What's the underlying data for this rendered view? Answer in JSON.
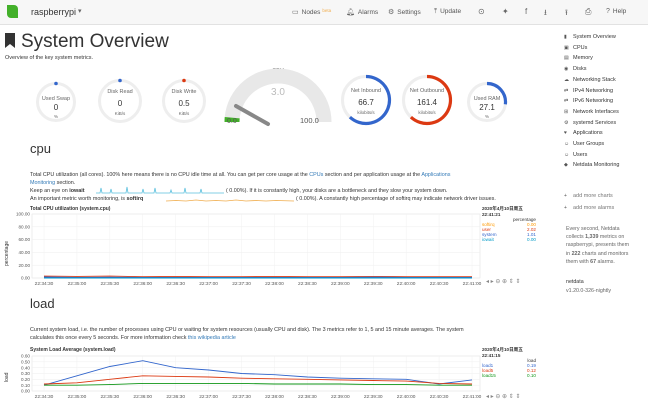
{
  "nav": {
    "brand": "raspberrypi",
    "items": [
      {
        "label": "Nodes",
        "badge": "beta",
        "icon": "nodes-icon"
      },
      {
        "label": "Alarms",
        "icon": "bell-icon"
      },
      {
        "label": "Settings",
        "icon": "gear-icon"
      },
      {
        "label": "Update",
        "icon": "update-icon"
      },
      {
        "label": "Help",
        "icon": "help-icon"
      }
    ],
    "icons": [
      "github-icon",
      "twitter-icon",
      "facebook-icon",
      "download-icon",
      "upload-icon",
      "print-icon"
    ]
  },
  "header": {
    "title": "System Overview",
    "subtitle": "Overview of the key system metrics."
  },
  "gauges": [
    {
      "title": "Used Swap",
      "value": "0",
      "unit": "%",
      "color": "#3366cc"
    },
    {
      "title": "Disk Read",
      "value": "0",
      "unit": "KiB/s",
      "color": "#3366cc"
    },
    {
      "title": "Disk Write",
      "value": "0.5",
      "unit": "KiB/s",
      "color": "#dc3912"
    },
    {
      "title": "Net Inbound",
      "value": "66.7",
      "unit": "kilobits/s",
      "color": "#3366cc"
    },
    {
      "title": "Net Outbound",
      "value": "161.4",
      "unit": "kilobits/s",
      "color": "#dc3912"
    },
    {
      "title": "Used RAM",
      "value": "27.1",
      "unit": "%",
      "color": "#3366cc"
    }
  ],
  "cpu_gauge": {
    "title": "CPU",
    "value": "3.0",
    "min": "0.0",
    "max": "100.0",
    "level_pct": 3.0
  },
  "cpu_section": {
    "title": "cpu",
    "desc_1": "Total CPU utilization (all cores). 100% here means there is no CPU idle time at all. You can get per core usage at the ",
    "desc_link_1": "CPUs",
    "desc_2": " section and per application usage at the ",
    "desc_link_2": "Applications",
    "desc_link_3": "Monitoring",
    "desc_3": " section.",
    "iowait_prefix": "Keep an eye on ",
    "iowait_key": "iowait",
    "iowait_suffix": "(      0.00%). If it is constantly high, your disks are a bottleneck and they slow your system down.",
    "softirq_prefix": "An important metric worth monitoring, is ",
    "softirq_key": "softirq",
    "softirq_suffix": "(      0.00%). A constantly high percentage of softirq may indicate network driver issues.",
    "chart_title": "Total CPU utilization (system.cpu)",
    "ylabel": "percentage",
    "timestamp_date": "2020年4月10日周五",
    "timestamp_time": "22:41:21",
    "legend_header": "percentage",
    "legend": [
      {
        "name": "softirq",
        "value": "0.00",
        "color": "#ff9900"
      },
      {
        "name": "user",
        "value": "2.02",
        "color": "#dc3912"
      },
      {
        "name": "system",
        "value": "1.01",
        "color": "#3366cc"
      },
      {
        "name": "iowait",
        "value": "0.00",
        "color": "#0099c6"
      }
    ],
    "yticks": [
      "100.00",
      "80.00",
      "60.00",
      "40.00",
      "20.00",
      "0.00"
    ],
    "xticks": [
      "22:34:30",
      "22:35:00",
      "22:35:30",
      "22:36:00",
      "22:36:30",
      "22:37:00",
      "22:37:30",
      "22:38:00",
      "22:38:30",
      "22:39:00",
      "22:39:30",
      "22:40:00",
      "22:40:30",
      "22:41:00"
    ]
  },
  "load_section": {
    "title": "load",
    "desc_1": "Current system load, i.e. the number of processes using CPU or waiting for system resources (usually CPU and disk). The 3 metrics refer to 1, 5 and 15 minute averages. The system",
    "desc_2": "calculates this once every 5 seconds. For more information check ",
    "desc_link": "this wikipedia article",
    "chart_title": "System Load Average (system.load)",
    "ylabel": "load",
    "timestamp_date": "2020年4月10日周五",
    "timestamp_time": "22:41:15",
    "legend_header": "load",
    "legend": [
      {
        "name": "load1",
        "value": "0.19",
        "color": "#3366cc"
      },
      {
        "name": "load5",
        "value": "0.12",
        "color": "#dc3912"
      },
      {
        "name": "load15",
        "value": "0.10",
        "color": "#109618"
      }
    ],
    "yticks": [
      "0.60",
      "0.50",
      "0.40",
      "0.30",
      "0.20",
      "0.10",
      "0.00"
    ],
    "xticks": [
      "22:34:30",
      "22:35:00",
      "22:35:30",
      "22:36:00",
      "22:36:30",
      "22:37:00",
      "22:37:30",
      "22:38:00",
      "22:38:30",
      "22:39:00",
      "22:39:30",
      "22:40:00",
      "22:40:30",
      "22:41:00"
    ]
  },
  "sidebar": {
    "items": [
      {
        "label": "System Overview",
        "icon": "bookmark-icon"
      },
      {
        "label": "CPUs",
        "icon": "cpu-icon"
      },
      {
        "label": "Memory",
        "icon": "memory-icon"
      },
      {
        "label": "Disks",
        "icon": "disk-icon"
      },
      {
        "label": "Networking Stack",
        "icon": "cloud-icon"
      },
      {
        "label": "IPv4 Networking",
        "icon": "network-icon"
      },
      {
        "label": "IPv6 Networking",
        "icon": "network-icon"
      },
      {
        "label": "Network Interfaces",
        "icon": "sitemap-icon"
      },
      {
        "label": "systemd Services",
        "icon": "cogs-icon"
      },
      {
        "label": "Applications",
        "icon": "heartbeat-icon"
      },
      {
        "label": "User Groups",
        "icon": "users-icon"
      },
      {
        "label": "Users",
        "icon": "user-icon"
      },
      {
        "label": "Netdata Monitoring",
        "icon": "netdata-icon"
      }
    ],
    "add_charts": "add more charts",
    "add_alarms": "add more alarms",
    "info_1": "Every second, Netdata",
    "info_2a": "collects ",
    "info_2b": "1,339",
    "info_2c": " metrics on",
    "info_3": "raspberrypi, presents them",
    "info_4a": "in ",
    "info_4b": "222",
    "info_4c": " charts and monitors",
    "info_5a": "them with ",
    "info_5b": "67",
    "info_5c": " alarms.",
    "footer_name": "netdata",
    "footer_version": "v1.20.0-326-nightly"
  },
  "chart_data": [
    {
      "type": "line",
      "title": "Total CPU utilization (system.cpu)",
      "ylabel": "percentage",
      "ylim": [
        0,
        100
      ],
      "x": [
        "22:34:30",
        "22:35:00",
        "22:35:30",
        "22:36:00",
        "22:36:30",
        "22:37:00",
        "22:37:30",
        "22:38:00",
        "22:38:30",
        "22:39:00",
        "22:39:30",
        "22:40:00",
        "22:40:30",
        "22:41:00"
      ],
      "series": [
        {
          "name": "softirq",
          "values": [
            0,
            0,
            0,
            0,
            0,
            0,
            0,
            0,
            0,
            0,
            0,
            0,
            0,
            0
          ]
        },
        {
          "name": "user",
          "values": [
            3,
            2.5,
            3,
            2,
            2.5,
            2,
            2,
            2.5,
            2,
            2,
            2.5,
            2,
            2,
            2.02
          ]
        },
        {
          "name": "system",
          "values": [
            1.5,
            1,
            1.2,
            1,
            1,
            1,
            1,
            1,
            1,
            1,
            1.2,
            1,
            1,
            1.01
          ]
        },
        {
          "name": "iowait",
          "values": [
            0,
            0,
            0,
            0,
            0,
            0,
            0,
            0,
            0,
            0,
            0,
            0,
            0,
            0
          ]
        }
      ]
    },
    {
      "type": "line",
      "title": "System Load Average (system.load)",
      "ylabel": "load",
      "ylim": [
        0,
        0.6
      ],
      "x": [
        "22:34:30",
        "22:35:00",
        "22:35:30",
        "22:36:00",
        "22:36:30",
        "22:37:00",
        "22:37:30",
        "22:38:00",
        "22:38:30",
        "22:39:00",
        "22:39:30",
        "22:40:00",
        "22:40:30",
        "22:41:00"
      ],
      "series": [
        {
          "name": "load1",
          "values": [
            0.1,
            0.26,
            0.42,
            0.52,
            0.4,
            0.36,
            0.3,
            0.28,
            0.24,
            0.22,
            0.21,
            0.2,
            0.12,
            0.19
          ]
        },
        {
          "name": "load5",
          "values": [
            0.12,
            0.14,
            0.2,
            0.26,
            0.25,
            0.24,
            0.22,
            0.21,
            0.2,
            0.19,
            0.18,
            0.17,
            0.13,
            0.12
          ]
        },
        {
          "name": "load15",
          "values": [
            0.1,
            0.1,
            0.11,
            0.13,
            0.13,
            0.13,
            0.13,
            0.12,
            0.12,
            0.12,
            0.11,
            0.11,
            0.1,
            0.1
          ]
        }
      ]
    }
  ]
}
